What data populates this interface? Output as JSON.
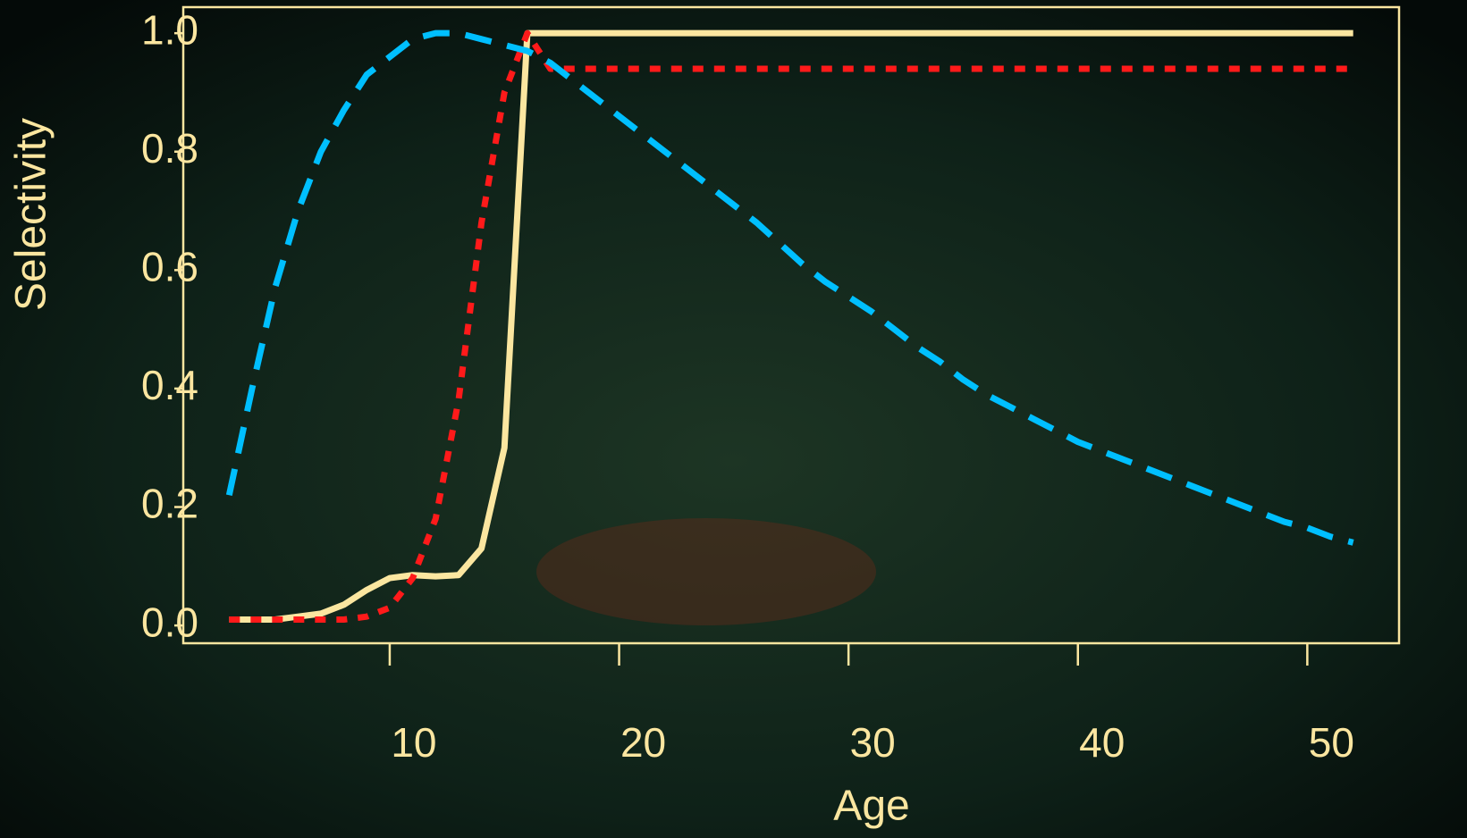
{
  "chart_data": {
    "type": "line",
    "x_label": "Age",
    "y_label": "Selectivity",
    "x": [
      3,
      4,
      5,
      6,
      7,
      8,
      9,
      10,
      11,
      12,
      13,
      14,
      15,
      16,
      17,
      18,
      19,
      20,
      21,
      22,
      23,
      24,
      25,
      26,
      27,
      28,
      29,
      30,
      31,
      32,
      33,
      34,
      35,
      36,
      37,
      38,
      39,
      40,
      41,
      42,
      43,
      44,
      45,
      46,
      47,
      48,
      49,
      50,
      51,
      52
    ],
    "series": [
      {
        "color": "#fbe6a0",
        "style": "solid",
        "values": [
          0.01,
          0.01,
          0.01,
          0.015,
          0.02,
          0.035,
          0.06,
          0.08,
          0.085,
          0.083,
          0.085,
          0.13,
          0.3,
          1.0,
          1.0,
          1.0,
          1.0,
          1.0,
          1.0,
          1.0,
          1.0,
          1.0,
          1.0,
          1.0,
          1.0,
          1.0,
          1.0,
          1.0,
          1.0,
          1.0,
          1.0,
          1.0,
          1.0,
          1.0,
          1.0,
          1.0,
          1.0,
          1.0,
          1.0,
          1.0,
          1.0,
          1.0,
          1.0,
          1.0,
          1.0,
          1.0,
          1.0,
          1.0,
          1.0,
          1.0
        ]
      },
      {
        "color": "#ff1a1a",
        "style": "dotted",
        "values": [
          0.01,
          0.01,
          0.01,
          0.01,
          0.01,
          0.01,
          0.015,
          0.03,
          0.08,
          0.18,
          0.38,
          0.68,
          0.9,
          1.0,
          0.94,
          0.94,
          0.94,
          0.94,
          0.94,
          0.94,
          0.94,
          0.94,
          0.94,
          0.94,
          0.94,
          0.94,
          0.94,
          0.94,
          0.94,
          0.94,
          0.94,
          0.94,
          0.94,
          0.94,
          0.94,
          0.94,
          0.94,
          0.94,
          0.94,
          0.94,
          0.94,
          0.94,
          0.94,
          0.94,
          0.94,
          0.94,
          0.94,
          0.94,
          0.94,
          0.94
        ]
      },
      {
        "color": "#00bfff",
        "style": "dashed",
        "values": [
          0.22,
          0.4,
          0.57,
          0.7,
          0.8,
          0.87,
          0.93,
          0.96,
          0.99,
          1.0,
          1.0,
          0.99,
          0.98,
          0.97,
          0.95,
          0.92,
          0.89,
          0.86,
          0.83,
          0.8,
          0.77,
          0.74,
          0.71,
          0.68,
          0.645,
          0.61,
          0.58,
          0.555,
          0.53,
          0.5,
          0.47,
          0.445,
          0.415,
          0.39,
          0.37,
          0.35,
          0.33,
          0.31,
          0.295,
          0.28,
          0.265,
          0.25,
          0.235,
          0.22,
          0.205,
          0.19,
          0.175,
          0.165,
          0.15,
          0.14
        ]
      }
    ],
    "xlim": [
      1,
      54
    ],
    "ylim": [
      -0.03,
      1.044
    ],
    "xticks": [
      10,
      20,
      30,
      40,
      50
    ],
    "yticks": [
      {
        "value": 0,
        "label": "0.0"
      },
      0.2,
      0.4,
      0.6,
      0.8,
      {
        "value": 1,
        "label": "1.0"
      }
    ],
    "axis_color": "#fbe6a0"
  }
}
